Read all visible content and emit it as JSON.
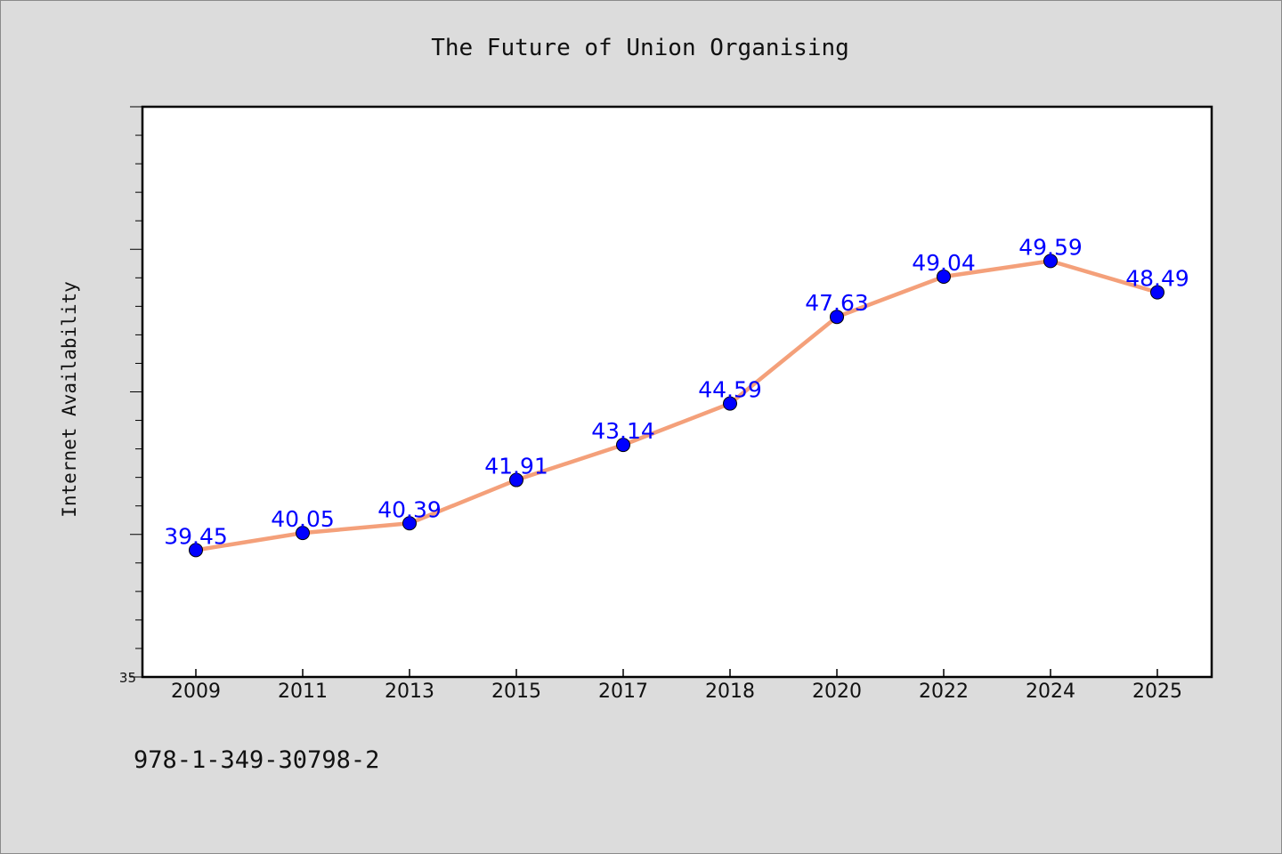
{
  "chart_data": {
    "type": "line",
    "title": "The Future of Union Organising",
    "xlabel": "",
    "ylabel": "Internet Availability",
    "categories": [
      "2009",
      "2011",
      "2013",
      "2015",
      "2017",
      "2018",
      "2020",
      "2022",
      "2024",
      "2025"
    ],
    "series": [
      {
        "values": [
          39.45,
          40.05,
          40.39,
          41.91,
          43.14,
          44.59,
          47.63,
          49.04,
          49.59,
          48.49
        ],
        "data_labels": [
          "39.45",
          "40.05",
          "40.39",
          "41.91",
          "43.14",
          "44.59",
          "47.63",
          "49.04",
          "49.59",
          "48.49"
        ],
        "line_color": "#f4a07a",
        "marker_color": "#0000ff"
      }
    ],
    "ylim": [
      35,
      55
    ],
    "y_tick_labels": [
      {
        "value": 35,
        "label": "35"
      }
    ],
    "grid": false,
    "legend": "none"
  },
  "footer": {
    "isbn": "978-1-349-30798-2"
  },
  "colors": {
    "background": "#dcdcdc",
    "plot_background": "#ffffff",
    "axis": "#000000",
    "data_label": "#0000ff"
  }
}
